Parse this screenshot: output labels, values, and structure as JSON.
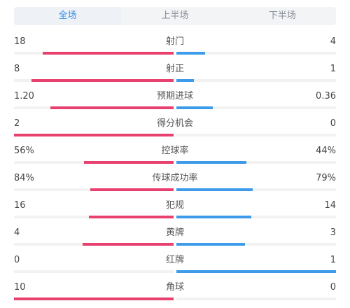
{
  "tabs": [
    {
      "label": "全场",
      "active": true
    },
    {
      "label": "上半场",
      "active": false
    },
    {
      "label": "下半场",
      "active": false
    }
  ],
  "colors": {
    "home": "#e8416f",
    "away": "#3d9be9",
    "track": "#f2f2f2",
    "active_tab": "#3a8ee6"
  },
  "stats": [
    {
      "label": "射门",
      "left": "18",
      "right": "4",
      "left_share": 0.82,
      "right_share": 0.18
    },
    {
      "label": "射正",
      "left": "8",
      "right": "1",
      "left_share": 0.89,
      "right_share": 0.11
    },
    {
      "label": "预期进球",
      "left": "1.20",
      "right": "0.36",
      "left_share": 0.77,
      "right_share": 0.23
    },
    {
      "label": "得分机会",
      "left": "2",
      "right": "0",
      "left_share": 1.0,
      "right_share": 0.0
    },
    {
      "label": "控球率",
      "left": "56%",
      "right": "44%",
      "left_share": 0.56,
      "right_share": 0.44
    },
    {
      "label": "传球成功率",
      "left": "84%",
      "right": "79%",
      "left_share": 0.52,
      "right_share": 0.48
    },
    {
      "label": "犯规",
      "left": "16",
      "right": "14",
      "left_share": 0.53,
      "right_share": 0.47
    },
    {
      "label": "黄牌",
      "left": "4",
      "right": "3",
      "left_share": 0.57,
      "right_share": 0.43
    },
    {
      "label": "红牌",
      "left": "0",
      "right": "1",
      "left_share": 0.0,
      "right_share": 1.0
    },
    {
      "label": "角球",
      "left": "10",
      "right": "0",
      "left_share": 1.0,
      "right_share": 0.0
    }
  ]
}
